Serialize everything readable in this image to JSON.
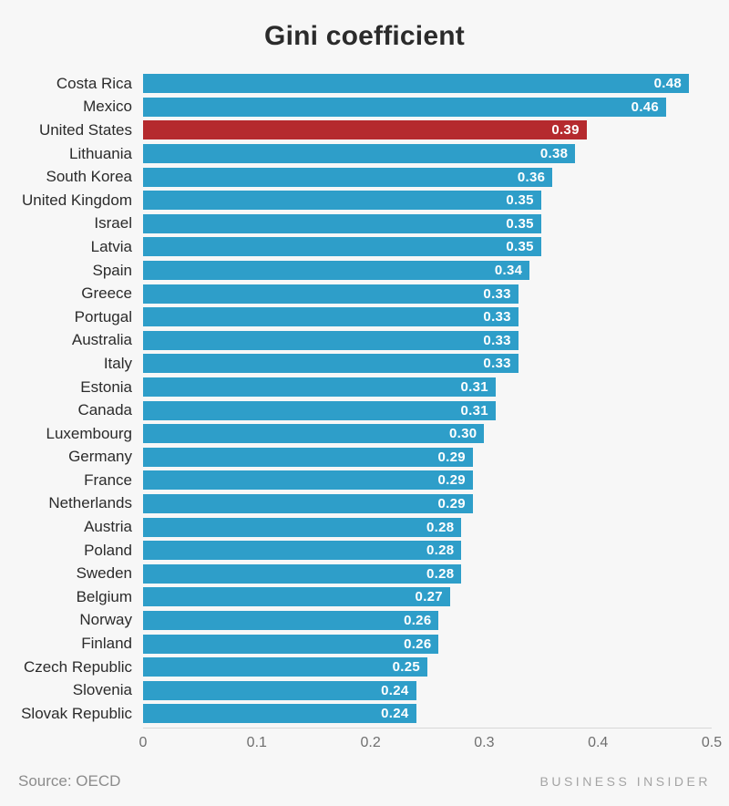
{
  "title": "Gini coefficient",
  "footer": {
    "source": "Source: OECD",
    "branding": "BUSINESS INSIDER"
  },
  "chart_data": {
    "type": "bar",
    "orientation": "horizontal",
    "title": "Gini coefficient",
    "categories": [
      "Costa Rica",
      "Mexico",
      "United States",
      "Lithuania",
      "South Korea",
      "United Kingdom",
      "Israel",
      "Latvia",
      "Spain",
      "Greece",
      "Portugal",
      "Australia",
      "Italy",
      "Estonia",
      "Canada",
      "Luxembourg",
      "Germany",
      "France",
      "Netherlands",
      "Austria",
      "Poland",
      "Sweden",
      "Belgium",
      "Norway",
      "Finland",
      "Czech Republic",
      "Slovenia",
      "Slovak Republic"
    ],
    "values": [
      0.48,
      0.46,
      0.39,
      0.38,
      0.36,
      0.35,
      0.35,
      0.35,
      0.34,
      0.33,
      0.33,
      0.33,
      0.33,
      0.31,
      0.31,
      0.3,
      0.29,
      0.29,
      0.29,
      0.28,
      0.28,
      0.28,
      0.27,
      0.26,
      0.26,
      0.25,
      0.24,
      0.24
    ],
    "value_labels": [
      "0.48",
      "0.46",
      "0.39",
      "0.38",
      "0.36",
      "0.35",
      "0.35",
      "0.35",
      "0.34",
      "0.33",
      "0.33",
      "0.33",
      "0.33",
      "0.31",
      "0.31",
      "0.30",
      "0.29",
      "0.29",
      "0.29",
      "0.28",
      "0.28",
      "0.28",
      "0.27",
      "0.26",
      "0.26",
      "0.25",
      "0.24",
      "0.24"
    ],
    "highlight_category": "United States",
    "colors": {
      "bar": "#2E9EC9",
      "highlight": "#B52A2E",
      "value_text": "#FFFFFF",
      "background": "#F7F7F7"
    },
    "x_axis": {
      "min": 0,
      "max": 0.5,
      "ticks": [
        "0",
        "0.1",
        "0.2",
        "0.3",
        "0.4",
        "0.5"
      ]
    },
    "xlabel": "",
    "ylabel": "",
    "grid": false,
    "legend": false
  }
}
